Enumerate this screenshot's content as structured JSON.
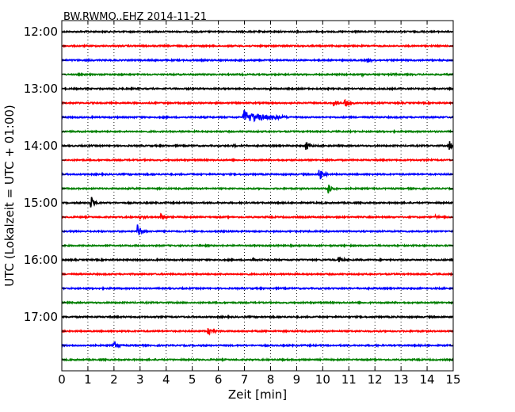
{
  "chart_data": {
    "type": "line",
    "title": "BW.RWMO..EHZ 2014-11-21",
    "xlabel": "Zeit  [min]",
    "ylabel": "UTC (Lokalzeit = UTC + 01:00)",
    "xlim": [
      0,
      15
    ],
    "x_ticks": [
      "0",
      "1",
      "2",
      "3",
      "4",
      "5",
      "6",
      "7",
      "8",
      "9",
      "10",
      "11",
      "12",
      "13",
      "14",
      "15"
    ],
    "y_ticks": [
      "12:00",
      "13:00",
      "14:00",
      "15:00",
      "16:00",
      "17:00"
    ],
    "grid": true,
    "legend": "none",
    "line_colors": [
      "#000000",
      "#ff0000",
      "#0000ff",
      "#008000"
    ],
    "traces": [
      {
        "start": "12:00",
        "color": "#000000",
        "events": []
      },
      {
        "start": "12:15",
        "color": "#ff0000",
        "events": []
      },
      {
        "start": "12:30",
        "color": "#0000ff",
        "events": [
          {
            "t": 11.7,
            "amp": 3
          }
        ]
      },
      {
        "start": "12:45",
        "color": "#008000",
        "events": [
          {
            "t": 11.5,
            "amp": 2
          },
          {
            "t": 12.6,
            "amp": 1.5
          }
        ]
      },
      {
        "start": "13:00",
        "color": "#000000",
        "events": [
          {
            "t": 7.9,
            "amp": 1.5
          }
        ]
      },
      {
        "start": "13:15",
        "color": "#ff0000",
        "events": [
          {
            "t": 10.4,
            "amp": 5
          },
          {
            "t": 10.85,
            "amp": 8
          }
        ]
      },
      {
        "start": "13:30",
        "color": "#0000ff",
        "events": [
          {
            "t": 6.95,
            "amp": 9,
            "dur": 0.7
          }
        ]
      },
      {
        "start": "13:45",
        "color": "#008000",
        "events": []
      },
      {
        "start": "14:00",
        "color": "#000000",
        "events": [
          {
            "t": 6.6,
            "amp": 2
          },
          {
            "t": 9.35,
            "amp": 7
          },
          {
            "t": 14.85,
            "amp": 8
          }
        ]
      },
      {
        "start": "14:15",
        "color": "#ff0000",
        "events": []
      },
      {
        "start": "14:30",
        "color": "#0000ff",
        "events": [
          {
            "t": 9.85,
            "amp": 11
          }
        ]
      },
      {
        "start": "14:45",
        "color": "#008000",
        "events": [
          {
            "t": 10.2,
            "amp": 8
          },
          {
            "t": 2.5,
            "amp": 2
          }
        ]
      },
      {
        "start": "15:00",
        "color": "#000000",
        "events": [
          {
            "t": 1.1,
            "amp": 11
          }
        ]
      },
      {
        "start": "15:15",
        "color": "#ff0000",
        "events": [
          {
            "t": 3.0,
            "amp": 4
          },
          {
            "t": 3.8,
            "amp": 5
          },
          {
            "t": 14.3,
            "amp": 2
          }
        ]
      },
      {
        "start": "15:30",
        "color": "#0000ff",
        "events": [
          {
            "t": 2.9,
            "amp": 10
          }
        ]
      },
      {
        "start": "15:45",
        "color": "#008000",
        "events": []
      },
      {
        "start": "16:00",
        "color": "#000000",
        "events": [
          {
            "t": 7.3,
            "amp": 2
          },
          {
            "t": 10.6,
            "amp": 5
          }
        ]
      },
      {
        "start": "16:15",
        "color": "#ff0000",
        "events": []
      },
      {
        "start": "16:30",
        "color": "#0000ff",
        "events": []
      },
      {
        "start": "16:45",
        "color": "#008000",
        "events": []
      },
      {
        "start": "17:00",
        "color": "#000000",
        "events": []
      },
      {
        "start": "17:15",
        "color": "#ff0000",
        "events": [
          {
            "t": 5.6,
            "amp": 6
          },
          {
            "t": 5.8,
            "amp": 3
          }
        ]
      },
      {
        "start": "17:30",
        "color": "#0000ff",
        "events": [
          {
            "t": 2.0,
            "amp": 6
          }
        ]
      },
      {
        "start": "17:45",
        "color": "#008000",
        "events": [
          {
            "t": 9.0,
            "amp": 1.5
          }
        ]
      }
    ]
  }
}
